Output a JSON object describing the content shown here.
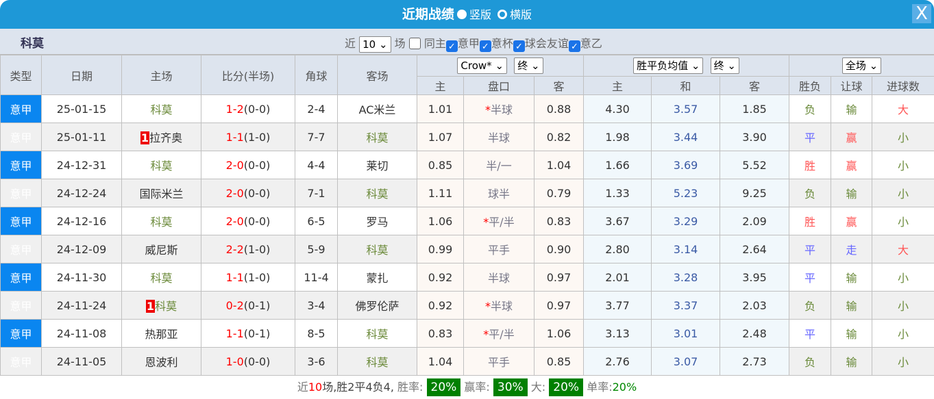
{
  "title": "近期战绩",
  "view_options": [
    "竖版",
    "横版"
  ],
  "close": "X",
  "team": "科莫",
  "filter": {
    "recent_label": "近",
    "count": "10",
    "field_label": "场",
    "same_home": "同主",
    "leagues": [
      "意甲",
      "意杯",
      "球会友谊",
      "意乙"
    ]
  },
  "headers": {
    "type": "类型",
    "date": "日期",
    "home": "主场",
    "score": "比分(半场)",
    "corner": "角球",
    "away": "客场",
    "company": "Crow*",
    "odds_time": "终",
    "euro": "胜平负均值",
    "euro_time": "终",
    "period": "全场",
    "sub": [
      "主",
      "盘口",
      "客",
      "主",
      "和",
      "客",
      "胜负",
      "让球",
      "进球数"
    ]
  },
  "rows": [
    {
      "type": "意甲",
      "date": "25-01-15",
      "home": "科莫",
      "home_rank": "",
      "score": "1-2",
      "ht": "(0-0)",
      "corner": "2-4",
      "away": "AC米兰",
      "o_h": "1.01",
      "hdp_star": "*",
      "hdp": "半球",
      "o_a": "0.88",
      "e_h": "4.30",
      "e_d": "3.57",
      "e_a": "1.85",
      "res": "负",
      "ah": "输",
      "ou": "大"
    },
    {
      "type": "意甲",
      "date": "25-01-11",
      "home": "拉齐奥",
      "home_rank": "1",
      "score": "1-1",
      "ht": "(1-0)",
      "corner": "7-7",
      "away": "科莫",
      "o_h": "1.07",
      "hdp_star": "",
      "hdp": "半球",
      "o_a": "0.82",
      "e_h": "1.98",
      "e_d": "3.44",
      "e_a": "3.90",
      "res": "平",
      "ah": "赢",
      "ou": "小"
    },
    {
      "type": "意甲",
      "date": "24-12-31",
      "home": "科莫",
      "home_rank": "",
      "score": "2-0",
      "ht": "(0-0)",
      "corner": "4-4",
      "away": "莱切",
      "o_h": "0.85",
      "hdp_star": "",
      "hdp": "半/一",
      "o_a": "1.04",
      "e_h": "1.66",
      "e_d": "3.69",
      "e_a": "5.52",
      "res": "胜",
      "ah": "赢",
      "ou": "小"
    },
    {
      "type": "意甲",
      "date": "24-12-24",
      "home": "国际米兰",
      "home_rank": "",
      "score": "2-0",
      "ht": "(0-0)",
      "corner": "7-1",
      "away": "科莫",
      "o_h": "1.11",
      "hdp_star": "",
      "hdp": "球半",
      "o_a": "0.79",
      "e_h": "1.33",
      "e_d": "5.23",
      "e_a": "9.25",
      "res": "负",
      "ah": "输",
      "ou": "小"
    },
    {
      "type": "意甲",
      "date": "24-12-16",
      "home": "科莫",
      "home_rank": "",
      "score": "2-0",
      "ht": "(0-0)",
      "corner": "6-5",
      "away": "罗马",
      "o_h": "1.06",
      "hdp_star": "*",
      "hdp": "平/半",
      "o_a": "0.83",
      "e_h": "3.67",
      "e_d": "3.29",
      "e_a": "2.09",
      "res": "胜",
      "ah": "赢",
      "ou": "小"
    },
    {
      "type": "意甲",
      "date": "24-12-09",
      "home": "威尼斯",
      "home_rank": "",
      "score": "2-2",
      "ht": "(1-0)",
      "corner": "5-9",
      "away": "科莫",
      "o_h": "0.99",
      "hdp_star": "",
      "hdp": "平手",
      "o_a": "0.90",
      "e_h": "2.80",
      "e_d": "3.14",
      "e_a": "2.64",
      "res": "平",
      "ah": "走",
      "ou": "大"
    },
    {
      "type": "意甲",
      "date": "24-11-30",
      "home": "科莫",
      "home_rank": "",
      "score": "1-1",
      "ht": "(1-0)",
      "corner": "11-4",
      "away": "蒙扎",
      "o_h": "0.92",
      "hdp_star": "",
      "hdp": "半球",
      "o_a": "0.97",
      "e_h": "2.01",
      "e_d": "3.28",
      "e_a": "3.95",
      "res": "平",
      "ah": "输",
      "ou": "小"
    },
    {
      "type": "意甲",
      "date": "24-11-24",
      "home": "科莫",
      "home_rank": "1",
      "score": "0-2",
      "ht": "(0-1)",
      "corner": "3-4",
      "away": "佛罗伦萨",
      "o_h": "0.92",
      "hdp_star": "*",
      "hdp": "半球",
      "o_a": "0.97",
      "e_h": "3.77",
      "e_d": "3.37",
      "e_a": "2.03",
      "res": "负",
      "ah": "输",
      "ou": "小"
    },
    {
      "type": "意甲",
      "date": "24-11-08",
      "home": "热那亚",
      "home_rank": "",
      "score": "1-1",
      "ht": "(0-1)",
      "corner": "8-5",
      "away": "科莫",
      "o_h": "0.83",
      "hdp_star": "*",
      "hdp": "平/半",
      "o_a": "1.06",
      "e_h": "3.13",
      "e_d": "3.01",
      "e_a": "2.48",
      "res": "平",
      "ah": "输",
      "ou": "小"
    },
    {
      "type": "意甲",
      "date": "24-11-05",
      "home": "恩波利",
      "home_rank": "",
      "score": "1-0",
      "ht": "(0-0)",
      "corner": "3-6",
      "away": "科莫",
      "o_h": "1.04",
      "hdp_star": "",
      "hdp": "平手",
      "o_a": "0.85",
      "e_h": "2.76",
      "e_d": "3.07",
      "e_a": "2.73",
      "res": "负",
      "ah": "输",
      "ou": "小"
    }
  ],
  "footer": {
    "pre": "近",
    "count": "10",
    "summary": "场,胜2平4负4,",
    "win_label": "胜率:",
    "win": "20%",
    "ah_label": "赢率:",
    "ah": "30%",
    "big_label": "大:",
    "big": "20%",
    "odd_label": "单率:",
    "odd": "20%"
  },
  "colors": {
    "titlebar": "#1e98d7",
    "type_cell": "#0a86f0",
    "win": "#ff5555",
    "draw": "#6666ff",
    "lose": "#6a8a3a",
    "badge": "#008000"
  }
}
